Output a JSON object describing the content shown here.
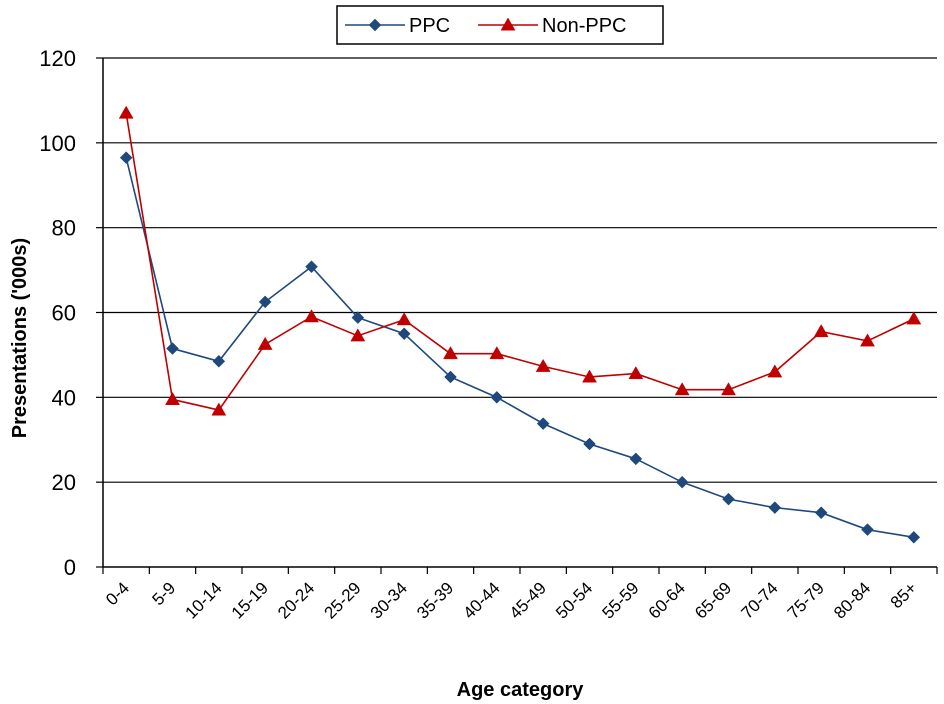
{
  "chart_data": {
    "type": "line",
    "categories": [
      "0-4",
      "5-9",
      "10-14",
      "15-19",
      "20-24",
      "25-29",
      "30-34",
      "35-39",
      "40-44",
      "45-49",
      "50-54",
      "55-59",
      "60-64",
      "65-69",
      "70-74",
      "75-79",
      "80-84",
      "85+"
    ],
    "series": [
      {
        "name": "PPC",
        "color": "#1F497D",
        "marker": "diamond",
        "values": [
          96.5,
          51.5,
          48.5,
          62.5,
          70.8,
          58.8,
          55.0,
          44.8,
          40.0,
          33.8,
          29.0,
          25.5,
          20.0,
          16.0,
          14.0,
          12.8,
          8.8,
          7.0
        ]
      },
      {
        "name": "Non-PPC",
        "color": "#C00000",
        "marker": "triangle",
        "values": [
          107.0,
          39.5,
          37.0,
          52.5,
          59.0,
          54.5,
          58.3,
          50.3,
          50.3,
          47.3,
          44.8,
          45.6,
          41.8,
          41.8,
          46.0,
          55.5,
          53.3,
          58.5
        ]
      }
    ],
    "xlabel": "Age category",
    "ylabel": "Presentations ('000s)",
    "ylim": [
      0,
      120
    ],
    "yticks": [
      "0",
      "20",
      "40",
      "60",
      "80",
      "100",
      "120"
    ],
    "grid": true,
    "legend": "top-center"
  }
}
